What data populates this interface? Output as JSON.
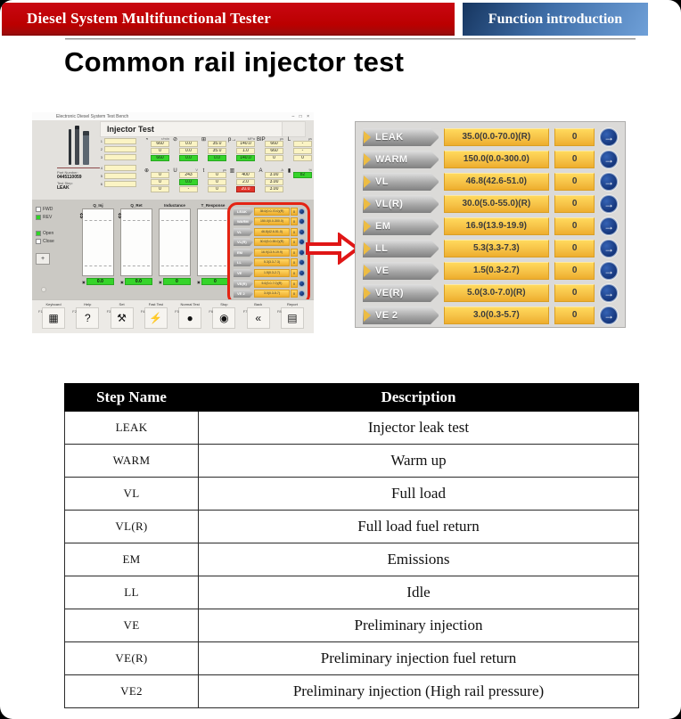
{
  "header": {
    "brand": "Diesel System Multifunctional Tester",
    "tab": "Function introduction"
  },
  "title": "Common rail injector test",
  "colors": {
    "brand_red": "#bb0000",
    "tab_blue_dark": "#16355f",
    "tab_blue_light": "#6fa0d8",
    "step_yellow": "#f6c247",
    "chevron_gray": "#a7a7a7",
    "go_button_blue": "#16377c",
    "result_green": "#35d42a",
    "alarm_red": "#e3342a",
    "highlight_red": "#e42313"
  },
  "app": {
    "window_title": "Electronic Diesel System Test Bench",
    "controls": [
      "–",
      "□",
      "×"
    ],
    "screen_title": "Injector Test",
    "part_label": "Part Number:",
    "part_number": "0445110059",
    "step_label": "Test Step:",
    "step_value": "LEAK",
    "inputs": [
      "1",
      "2",
      "3",
      "4",
      "5",
      "6"
    ],
    "gauge_rows": [
      [
        {
          "icon": "◔",
          "unit": "r/min",
          "vals": [
            {
              "t": "660"
            },
            {
              "t": "0"
            },
            {
              "t": "660",
              "c": "g"
            }
          ]
        },
        {
          "icon": "⊘",
          "unit": "",
          "vals": [
            {
              "t": "0.0"
            },
            {
              "t": "0.0"
            },
            {
              "t": "0.0",
              "c": "g"
            }
          ]
        },
        {
          "icon": "⊞",
          "unit": "",
          "vals": [
            {
              "t": "35.0"
            },
            {
              "t": "35.0"
            },
            {
              "t": "0.0",
              "c": "g"
            }
          ]
        },
        {
          "icon": "p→",
          "unit": "MPa",
          "vals": [
            {
              "t": "140.0"
            },
            {
              "t": "1.0"
            },
            {
              "t": "140.0",
              "c": "g"
            }
          ]
        },
        {
          "icon": "BIP",
          "unit": "μs",
          "vals": [
            {
              "t": "660"
            },
            {
              "t": "660"
            },
            {
              "t": "0"
            }
          ]
        },
        {
          "icon": "L",
          "unit": "μs",
          "vals": [
            {
              "t": "-"
            },
            {
              "t": "-"
            },
            {
              "t": "0"
            }
          ]
        }
      ],
      [
        {
          "icon": "⊕",
          "unit": "s",
          "vals": [
            {
              "t": "0"
            },
            {
              "t": "0"
            },
            {
              "t": "0"
            }
          ]
        },
        {
          "icon": "U",
          "unit": "V",
          "vals": [
            {
              "t": "243"
            },
            {
              "t": "0.0",
              "c": "g"
            },
            {
              "t": "-"
            }
          ]
        },
        {
          "icon": "t",
          "unit": "μs",
          "vals": [
            {
              "t": "0"
            },
            {
              "t": "0"
            },
            {
              "t": "0"
            }
          ]
        },
        {
          "icon": "▥",
          "unit": "",
          "vals": [
            {
              "t": "400"
            },
            {
              "t": "2.0"
            },
            {
              "t": "20.0",
              "c": "r"
            }
          ]
        },
        {
          "icon": "A",
          "unit": "A",
          "vals": [
            {
              "t": "3.00"
            },
            {
              "t": "3.00"
            },
            {
              "t": "3.00"
            }
          ]
        },
        {
          "icon": "▮",
          "unit": "%",
          "vals": [
            {
              "t": "82",
              "c": "g"
            }
          ]
        }
      ]
    ],
    "checkboxes": [
      {
        "label": "FWD",
        "checked": false
      },
      {
        "label": "REV",
        "checked": true
      },
      {
        "label": "Open",
        "checked": true
      },
      {
        "label": "Close",
        "checked": false
      }
    ],
    "plus_button": "+",
    "charts": [
      {
        "label": "Q_Inj",
        "result": "0.0",
        "slider": true
      },
      {
        "label": "Q_Ret",
        "result": "0.0",
        "slider": true
      },
      {
        "label": "Inductance",
        "result": "0",
        "slider": false
      },
      {
        "label": "T_Response",
        "result": "0",
        "slider": false
      }
    ],
    "toolbar": [
      {
        "fkey": "F1",
        "label": "Keyboard",
        "icon": "▦"
      },
      {
        "fkey": "F2",
        "label": "Help",
        "icon": "?"
      },
      {
        "fkey": "F3",
        "label": "Set",
        "icon": "⚒"
      },
      {
        "fkey": "F4",
        "label": "Fast Test",
        "icon": "⚡"
      },
      {
        "fkey": "F5",
        "label": "Normal Test",
        "icon": "●"
      },
      {
        "fkey": "F6",
        "label": "Stop",
        "icon": "◉"
      },
      {
        "fkey": "F7",
        "label": "Back",
        "icon": "«"
      },
      {
        "fkey": "F8",
        "label": "Report",
        "icon": "▤"
      }
    ]
  },
  "steps": [
    {
      "name": "LEAK",
      "value": "35.0(0.0-70.0)(R)",
      "count": "0"
    },
    {
      "name": "WARM",
      "value": "150.0(0.0-300.0)",
      "count": "0"
    },
    {
      "name": "VL",
      "value": "46.8(42.6-51.0)",
      "count": "0"
    },
    {
      "name": "VL(R)",
      "value": "30.0(5.0-55.0)(R)",
      "count": "0"
    },
    {
      "name": "EM",
      "value": "16.9(13.9-19.9)",
      "count": "0"
    },
    {
      "name": "LL",
      "value": "5.3(3.3-7.3)",
      "count": "0"
    },
    {
      "name": "VE",
      "value": "1.5(0.3-2.7)",
      "count": "0"
    },
    {
      "name": "VE(R)",
      "value": "5.0(3.0-7.0)(R)",
      "count": "0"
    },
    {
      "name": "VE 2",
      "value": "3.0(0.3-5.7)",
      "count": "0"
    }
  ],
  "go_arrow": "→",
  "table": {
    "headers": [
      "Step Name",
      "Description"
    ],
    "rows": [
      [
        "LEAK",
        "Injector leak test"
      ],
      [
        "WARM",
        "Warm up"
      ],
      [
        "VL",
        "Full load"
      ],
      [
        "VL(R)",
        "Full load fuel return"
      ],
      [
        "EM",
        "Emissions"
      ],
      [
        "LL",
        "Idle"
      ],
      [
        "VE",
        "Preliminary injection"
      ],
      [
        "VE(R)",
        "Preliminary injection fuel return"
      ],
      [
        "VE2",
        "Preliminary injection (High rail pressure)"
      ]
    ]
  }
}
